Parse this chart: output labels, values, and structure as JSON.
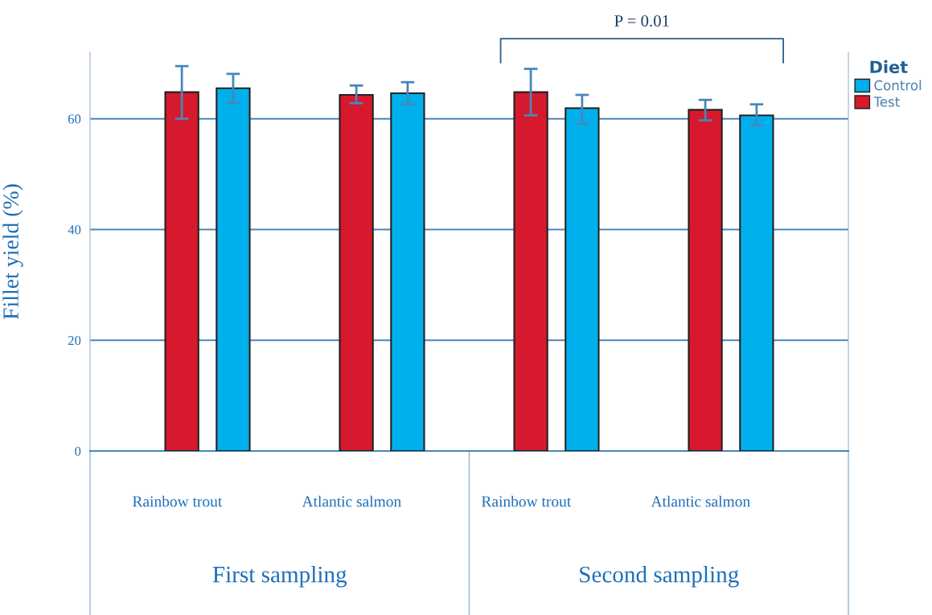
{
  "chart_data": {
    "type": "bar",
    "categories": [
      "Rainbow trout",
      "Atlantic salmon",
      "Rainbow trout",
      "Atlantic salmon"
    ],
    "series": [
      {
        "name": "Test",
        "color": "#d7192d",
        "values": [
          64.8,
          64.3,
          64.8,
          61.6
        ],
        "errors": [
          [
            60.0,
            69.5
          ],
          [
            62.8,
            66.0
          ],
          [
            60.6,
            69.0
          ],
          [
            59.7,
            63.4
          ]
        ]
      },
      {
        "name": "Control",
        "color": "#00b0ed",
        "values": [
          65.5,
          64.6,
          61.9,
          60.6
        ],
        "errors": [
          [
            62.9,
            68.1
          ],
          [
            62.6,
            66.6
          ],
          [
            59.1,
            64.3
          ],
          [
            58.8,
            62.6
          ]
        ]
      }
    ],
    "ylabel": "Fillet yield (%)",
    "legend_title": "Diet",
    "annotations": [
      "P = 0.01",
      "First sampling",
      "Second sampling"
    ],
    "ylim": [
      0,
      72
    ],
    "yticks": [
      0,
      20,
      40,
      60
    ],
    "grid": "y",
    "legend": "right"
  }
}
